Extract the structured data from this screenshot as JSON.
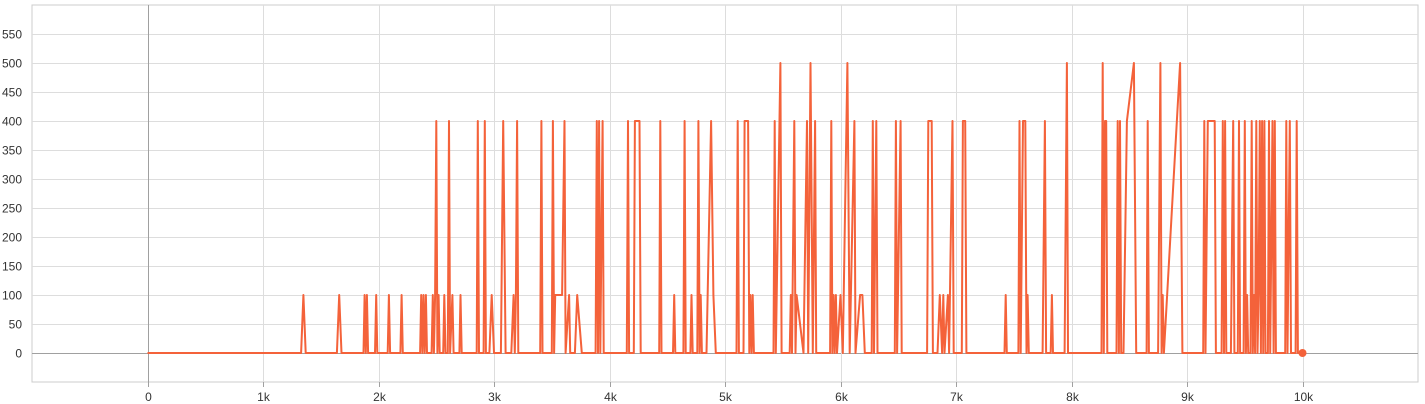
{
  "chart_data": {
    "type": "line",
    "title": "",
    "xlabel": "",
    "ylabel": "",
    "xlim": [
      -1000,
      11000
    ],
    "ylim": [
      -50,
      600
    ],
    "grid": true,
    "legend": "none",
    "x_ticks": [
      {
        "value": 0,
        "label": "0"
      },
      {
        "value": 1000,
        "label": "1k"
      },
      {
        "value": 2000,
        "label": "2k"
      },
      {
        "value": 3000,
        "label": "3k"
      },
      {
        "value": 4000,
        "label": "4k"
      },
      {
        "value": 5000,
        "label": "5k"
      },
      {
        "value": 6000,
        "label": "6k"
      },
      {
        "value": 7000,
        "label": "7k"
      },
      {
        "value": 8000,
        "label": "8k"
      },
      {
        "value": 9000,
        "label": "9k"
      },
      {
        "value": 10000,
        "label": "10k"
      }
    ],
    "y_ticks": [
      {
        "value": 0,
        "label": "0"
      },
      {
        "value": 50,
        "label": "50"
      },
      {
        "value": 100,
        "label": "100"
      },
      {
        "value": 150,
        "label": "150"
      },
      {
        "value": 200,
        "label": "200"
      },
      {
        "value": 250,
        "label": "250"
      },
      {
        "value": 300,
        "label": "300"
      },
      {
        "value": 350,
        "label": "350"
      },
      {
        "value": 400,
        "label": "400"
      },
      {
        "value": 450,
        "label": "450"
      },
      {
        "value": 500,
        "label": "500"
      },
      {
        "value": 550,
        "label": "550"
      }
    ],
    "series": [
      {
        "color": "#f4623a",
        "points": [
          [
            0,
            0
          ],
          [
            1330,
            0
          ],
          [
            1350,
            100
          ],
          [
            1370,
            0
          ],
          [
            1640,
            0
          ],
          [
            1660,
            100
          ],
          [
            1680,
            0
          ],
          [
            1870,
            0
          ],
          [
            1880,
            100
          ],
          [
            1890,
            0
          ],
          [
            1900,
            100
          ],
          [
            1910,
            0
          ],
          [
            1970,
            0
          ],
          [
            1980,
            100
          ],
          [
            1990,
            0
          ],
          [
            2080,
            0
          ],
          [
            2090,
            100
          ],
          [
            2100,
            0
          ],
          [
            2190,
            0
          ],
          [
            2200,
            100
          ],
          [
            2210,
            0
          ],
          [
            2360,
            0
          ],
          [
            2370,
            100
          ],
          [
            2380,
            0
          ],
          [
            2390,
            100
          ],
          [
            2400,
            0
          ],
          [
            2410,
            100
          ],
          [
            2420,
            0
          ],
          [
            2460,
            0
          ],
          [
            2470,
            100
          ],
          [
            2480,
            0
          ],
          [
            2490,
            100
          ],
          [
            2500,
            400
          ],
          [
            2510,
            0
          ],
          [
            2520,
            100
          ],
          [
            2530,
            0
          ],
          [
            2560,
            0
          ],
          [
            2570,
            100
          ],
          [
            2580,
            0
          ],
          [
            2600,
            0
          ],
          [
            2610,
            400
          ],
          [
            2620,
            0
          ],
          [
            2640,
            100
          ],
          [
            2650,
            0
          ],
          [
            2700,
            0
          ],
          [
            2710,
            100
          ],
          [
            2720,
            0
          ],
          [
            2850,
            0
          ],
          [
            2860,
            400
          ],
          [
            2870,
            0
          ],
          [
            2910,
            0
          ],
          [
            2920,
            400
          ],
          [
            2930,
            0
          ],
          [
            2960,
            0
          ],
          [
            2980,
            100
          ],
          [
            3000,
            0
          ],
          [
            3060,
            0
          ],
          [
            3080,
            400
          ],
          [
            3100,
            0
          ],
          [
            3150,
            0
          ],
          [
            3170,
            100
          ],
          [
            3180,
            0
          ],
          [
            3190,
            100
          ],
          [
            3200,
            400
          ],
          [
            3210,
            0
          ],
          [
            3400,
            0
          ],
          [
            3410,
            400
          ],
          [
            3420,
            0
          ],
          [
            3500,
            0
          ],
          [
            3510,
            400
          ],
          [
            3520,
            0
          ],
          [
            3530,
            100
          ],
          [
            3590,
            100
          ],
          [
            3610,
            400
          ],
          [
            3620,
            0
          ],
          [
            3650,
            100
          ],
          [
            3660,
            0
          ],
          [
            3700,
            0
          ],
          [
            3720,
            100
          ],
          [
            3760,
            0
          ],
          [
            3880,
            0
          ],
          [
            3890,
            400
          ],
          [
            3900,
            0
          ],
          [
            3910,
            400
          ],
          [
            3920,
            0
          ],
          [
            3940,
            400
          ],
          [
            3950,
            0
          ],
          [
            4150,
            0
          ],
          [
            4160,
            400
          ],
          [
            4170,
            0
          ],
          [
            4210,
            0
          ],
          [
            4220,
            400
          ],
          [
            4260,
            400
          ],
          [
            4270,
            0
          ],
          [
            4430,
            0
          ],
          [
            4440,
            400
          ],
          [
            4450,
            0
          ],
          [
            4550,
            0
          ],
          [
            4560,
            100
          ],
          [
            4570,
            0
          ],
          [
            4640,
            0
          ],
          [
            4650,
            400
          ],
          [
            4660,
            0
          ],
          [
            4700,
            0
          ],
          [
            4710,
            100
          ],
          [
            4720,
            0
          ],
          [
            4760,
            0
          ],
          [
            4770,
            400
          ],
          [
            4780,
            0
          ],
          [
            4790,
            100
          ],
          [
            4800,
            0
          ],
          [
            4840,
            0
          ],
          [
            4880,
            400
          ],
          [
            4900,
            100
          ],
          [
            4920,
            0
          ],
          [
            5100,
            0
          ],
          [
            5110,
            400
          ],
          [
            5120,
            0
          ],
          [
            5160,
            0
          ],
          [
            5170,
            400
          ],
          [
            5200,
            400
          ],
          [
            5210,
            0
          ],
          [
            5220,
            100
          ],
          [
            5230,
            0
          ],
          [
            5240,
            100
          ],
          [
            5250,
            0
          ],
          [
            5420,
            0
          ],
          [
            5430,
            400
          ],
          [
            5440,
            0
          ],
          [
            5480,
            500
          ],
          [
            5490,
            0
          ],
          [
            5560,
            0
          ],
          [
            5570,
            100
          ],
          [
            5580,
            0
          ],
          [
            5600,
            400
          ],
          [
            5610,
            0
          ],
          [
            5620,
            100
          ],
          [
            5680,
            0
          ],
          [
            5710,
            400
          ],
          [
            5720,
            0
          ],
          [
            5740,
            500
          ],
          [
            5760,
            0
          ],
          [
            5780,
            400
          ],
          [
            5790,
            0
          ],
          [
            5910,
            0
          ],
          [
            5920,
            400
          ],
          [
            5930,
            0
          ],
          [
            5940,
            100
          ],
          [
            5950,
            0
          ],
          [
            5960,
            100
          ],
          [
            5970,
            0
          ],
          [
            6000,
            100
          ],
          [
            6020,
            0
          ],
          [
            6060,
            500
          ],
          [
            6080,
            0
          ],
          [
            6120,
            400
          ],
          [
            6130,
            0
          ],
          [
            6170,
            100
          ],
          [
            6190,
            100
          ],
          [
            6210,
            0
          ],
          [
            6270,
            0
          ],
          [
            6280,
            400
          ],
          [
            6290,
            0
          ],
          [
            6310,
            400
          ],
          [
            6320,
            0
          ],
          [
            6470,
            0
          ],
          [
            6480,
            400
          ],
          [
            6490,
            0
          ],
          [
            6520,
            400
          ],
          [
            6530,
            0
          ],
          [
            6750,
            0
          ],
          [
            6760,
            400
          ],
          [
            6790,
            400
          ],
          [
            6800,
            0
          ],
          [
            6840,
            0
          ],
          [
            6860,
            100
          ],
          [
            6880,
            0
          ],
          [
            6890,
            100
          ],
          [
            6900,
            0
          ],
          [
            6930,
            100
          ],
          [
            6940,
            0
          ],
          [
            6970,
            400
          ],
          [
            6980,
            0
          ],
          [
            7050,
            0
          ],
          [
            7060,
            400
          ],
          [
            7080,
            400
          ],
          [
            7090,
            0
          ],
          [
            7420,
            0
          ],
          [
            7430,
            100
          ],
          [
            7440,
            0
          ],
          [
            7540,
            0
          ],
          [
            7550,
            400
          ],
          [
            7560,
            0
          ],
          [
            7580,
            400
          ],
          [
            7600,
            400
          ],
          [
            7610,
            0
          ],
          [
            7620,
            100
          ],
          [
            7630,
            0
          ],
          [
            7750,
            0
          ],
          [
            7770,
            400
          ],
          [
            7780,
            0
          ],
          [
            7820,
            0
          ],
          [
            7830,
            100
          ],
          [
            7840,
            0
          ],
          [
            7940,
            0
          ],
          [
            7960,
            500
          ],
          [
            7970,
            0
          ],
          [
            8260,
            0
          ],
          [
            8270,
            500
          ],
          [
            8280,
            0
          ],
          [
            8290,
            400
          ],
          [
            8300,
            400
          ],
          [
            8310,
            0
          ],
          [
            8390,
            0
          ],
          [
            8400,
            400
          ],
          [
            8410,
            0
          ],
          [
            8420,
            400
          ],
          [
            8430,
            0
          ],
          [
            8450,
            0
          ],
          [
            8480,
            400
          ],
          [
            8540,
            500
          ],
          [
            8560,
            0
          ],
          [
            8650,
            0
          ],
          [
            8660,
            400
          ],
          [
            8670,
            0
          ],
          [
            8750,
            0
          ],
          [
            8770,
            500
          ],
          [
            8780,
            0
          ],
          [
            8790,
            100
          ],
          [
            8800,
            0
          ],
          [
            8940,
            500
          ],
          [
            8960,
            0
          ],
          [
            9140,
            0
          ],
          [
            9150,
            400
          ],
          [
            9160,
            0
          ],
          [
            9180,
            400
          ],
          [
            9240,
            400
          ],
          [
            9250,
            0
          ],
          [
            9300,
            0
          ],
          [
            9310,
            400
          ],
          [
            9320,
            0
          ],
          [
            9330,
            400
          ],
          [
            9340,
            0
          ],
          [
            9380,
            0
          ],
          [
            9400,
            400
          ],
          [
            9410,
            0
          ],
          [
            9440,
            0
          ],
          [
            9450,
            400
          ],
          [
            9460,
            0
          ],
          [
            9490,
            0
          ],
          [
            9500,
            400
          ],
          [
            9510,
            0
          ],
          [
            9520,
            100
          ],
          [
            9530,
            0
          ],
          [
            9550,
            0
          ],
          [
            9560,
            400
          ],
          [
            9570,
            0
          ],
          [
            9580,
            100
          ],
          [
            9590,
            0
          ],
          [
            9600,
            400
          ],
          [
            9610,
            0
          ],
          [
            9620,
            100
          ],
          [
            9630,
            400
          ],
          [
            9640,
            0
          ],
          [
            9650,
            400
          ],
          [
            9660,
            0
          ],
          [
            9670,
            400
          ],
          [
            9680,
            0
          ],
          [
            9700,
            0
          ],
          [
            9710,
            400
          ],
          [
            9720,
            0
          ],
          [
            9740,
            400
          ],
          [
            9750,
            0
          ],
          [
            9760,
            400
          ],
          [
            9770,
            0
          ],
          [
            9850,
            0
          ],
          [
            9860,
            400
          ],
          [
            9870,
            0
          ],
          [
            9890,
            400
          ],
          [
            9900,
            0
          ],
          [
            9940,
            0
          ],
          [
            9950,
            400
          ],
          [
            9960,
            0
          ],
          [
            9990,
            0
          ],
          [
            10000,
            0
          ]
        ]
      }
    ]
  }
}
